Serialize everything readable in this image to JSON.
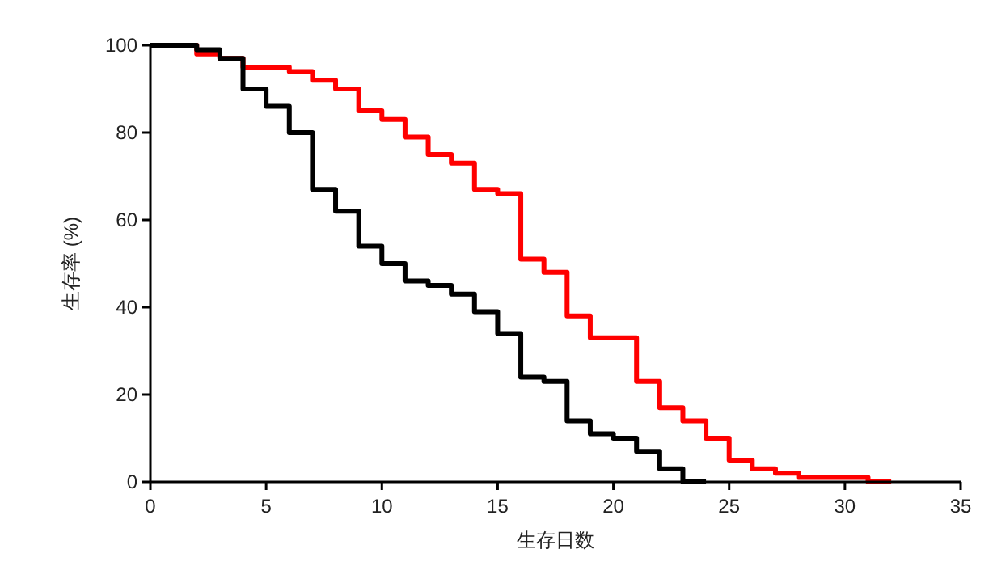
{
  "chart_data": {
    "type": "step",
    "xlabel": "生存日数",
    "ylabel": "生存率 (%)",
    "xlim": [
      0,
      35
    ],
    "ylim": [
      0,
      100
    ],
    "xticks": [
      0,
      5,
      10,
      15,
      20,
      25,
      30,
      35
    ],
    "yticks": [
      0,
      20,
      40,
      60,
      80,
      100
    ],
    "series": [
      {
        "color": "#ff0000",
        "x": [
          0,
          2,
          3,
          4,
          6,
          7,
          8,
          9,
          10,
          11,
          12,
          13,
          14,
          15,
          16,
          17,
          18,
          19,
          21,
          22,
          23,
          24,
          25,
          26,
          27,
          28,
          31,
          32
        ],
        "values": [
          100,
          98,
          97,
          95,
          94,
          92,
          90,
          85,
          83,
          79,
          75,
          73,
          67,
          66,
          51,
          48,
          38,
          33,
          23,
          17,
          14,
          10,
          5,
          3,
          2,
          1,
          0,
          0
        ]
      },
      {
        "color": "#000000",
        "x": [
          0,
          2,
          3,
          4,
          5,
          6,
          7,
          8,
          9,
          10,
          11,
          12,
          13,
          14,
          15,
          16,
          17,
          18,
          19,
          20,
          21,
          22,
          23,
          24
        ],
        "values": [
          100,
          99,
          97,
          90,
          86,
          80,
          67,
          62,
          54,
          50,
          46,
          45,
          43,
          39,
          34,
          24,
          23,
          14,
          11,
          10,
          7,
          3,
          0,
          0
        ]
      }
    ]
  }
}
